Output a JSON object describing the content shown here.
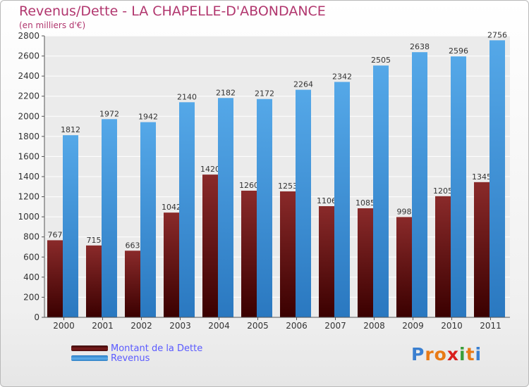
{
  "header": {
    "title": "Revenus/Dette - LA CHAPELLE-D'ABONDANCE",
    "subtitle": "(en milliers d'€)"
  },
  "colors": {
    "debt": "#7a1c1c",
    "revenue": "#4a9fe0",
    "title": "#b1366e",
    "legend_text": "#5a5aff",
    "plot_bg": "#ebebeb",
    "grid": "#ffffff"
  },
  "chart_data": {
    "type": "bar",
    "categories": [
      "2000",
      "2001",
      "2002",
      "2003",
      "2004",
      "2005",
      "2006",
      "2007",
      "2008",
      "2009",
      "2010",
      "2011"
    ],
    "series": [
      {
        "name": "Montant de la Dette",
        "values": [
          767,
          715,
          663,
          1042,
          1420,
          1260,
          1253,
          1106,
          1085,
          998,
          1205,
          1345
        ],
        "labels": [
          "767",
          "715",
          "663",
          "1042",
          "1420",
          "1260",
          "1253",
          "1106",
          "1085",
          "998",
          "1205",
          "1345"
        ]
      },
      {
        "name": "Revenus",
        "values": [
          1812,
          1972,
          1942,
          2140,
          2182,
          2172,
          2264,
          2342,
          2505,
          2638,
          2596,
          2756
        ],
        "labels": [
          "1812",
          "1972",
          "1942",
          "2140",
          "2182",
          "2172",
          "2264",
          "2342",
          "2505",
          "2638",
          "2596",
          "2756"
        ]
      }
    ],
    "ylim": [
      0,
      2800
    ],
    "yticks": [
      0,
      200,
      400,
      600,
      800,
      1000,
      1200,
      1400,
      1600,
      1800,
      2000,
      2200,
      2400,
      2600,
      2800
    ],
    "grid": true,
    "legend_position": "bottom-left"
  },
  "legend": {
    "items": [
      {
        "label": "Montant de la Dette"
      },
      {
        "label": "Revenus"
      }
    ]
  },
  "logo": {
    "text": "Proxiti",
    "letter_colors": [
      "#3a7fd0",
      "#e87a16",
      "#e87a16",
      "#d91e1e",
      "#3a9e3a",
      "#e87a16",
      "#3a7fd0"
    ]
  }
}
